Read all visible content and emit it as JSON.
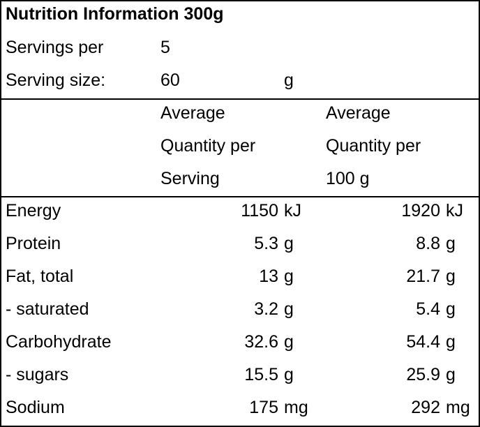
{
  "title": "Nutrition Information 300g",
  "servings_per": {
    "label": "Servings per",
    "value": 5
  },
  "serving_size": {
    "label": "Serving size:",
    "value": 60,
    "unit": "g"
  },
  "columns": [
    [
      "Average",
      "Quantity per",
      "Serving"
    ],
    [
      "Average",
      "Quantity per",
      "100 g"
    ]
  ],
  "rows": [
    {
      "name": "Energy",
      "per_serving": 1150,
      "per_100g": 1920,
      "unit": "kJ"
    },
    {
      "name": "Protein",
      "per_serving": 5.3,
      "per_100g": 8.8,
      "unit": "g"
    },
    {
      "name": "Fat, total",
      "per_serving": 13,
      "per_100g": 21.7,
      "unit": "g"
    },
    {
      "name": "- saturated",
      "per_serving": 3.2,
      "per_100g": 5.4,
      "unit": "g"
    },
    {
      "name": "Carbohydrate",
      "per_serving": 32.6,
      "per_100g": 54.4,
      "unit": "g"
    },
    {
      "name": "- sugars",
      "per_serving": 15.5,
      "per_100g": 25.9,
      "unit": "g"
    },
    {
      "name": "Sodium",
      "per_serving": 175,
      "per_100g": 292,
      "unit": "mg"
    }
  ]
}
